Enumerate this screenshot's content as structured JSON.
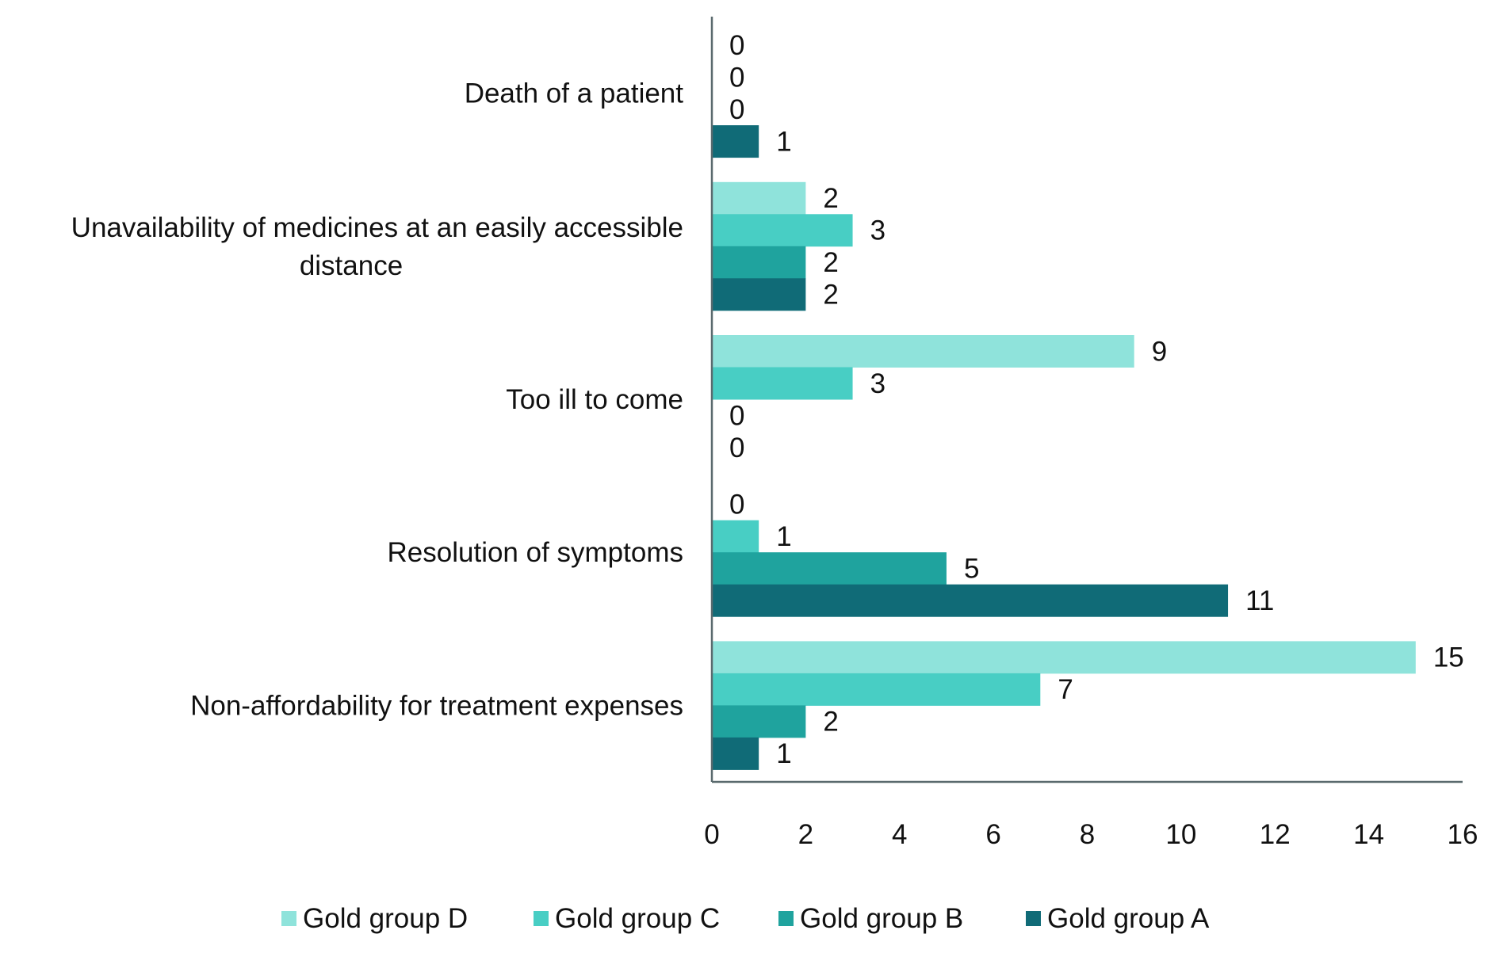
{
  "chart_data": {
    "type": "bar",
    "orientation": "horizontal",
    "title": "",
    "xlabel": "",
    "ylabel": "",
    "xlim": [
      0,
      16
    ],
    "xticks": [
      0,
      2,
      4,
      6,
      8,
      10,
      12,
      14,
      16
    ],
    "xtick_labels": [
      "0",
      "2",
      "4",
      "6",
      "8",
      "10",
      "12",
      "14",
      "16"
    ],
    "grid": false,
    "legend_position": "bottom",
    "categories": [
      {
        "label_lines": [
          "Death of a patient"
        ]
      },
      {
        "label_lines": [
          "Unavailability of medicines at an easily accessible",
          "distance"
        ]
      },
      {
        "label_lines": [
          "Too ill to come"
        ]
      },
      {
        "label_lines": [
          "Resolution of symptoms"
        ]
      },
      {
        "label_lines": [
          "Non-affordability for treatment expenses"
        ]
      }
    ],
    "category_names": [
      "Death of a patient",
      "Unavailability of medicines at an easily accessible distance",
      "Too ill to come",
      "Resolution of symptoms",
      "Non-affordability for treatment expenses"
    ],
    "series": [
      {
        "name": "Gold group D",
        "color": "#8fe3db",
        "values": [
          0,
          2,
          9,
          0,
          15
        ]
      },
      {
        "name": "Gold group C",
        "color": "#48cec4",
        "values": [
          0,
          3,
          3,
          1,
          7
        ]
      },
      {
        "name": "Gold group B",
        "color": "#1fa39e",
        "values": [
          0,
          2,
          0,
          5,
          2
        ]
      },
      {
        "name": "Gold group A",
        "color": "#106b77",
        "values": [
          1,
          2,
          0,
          11,
          1
        ]
      }
    ]
  }
}
